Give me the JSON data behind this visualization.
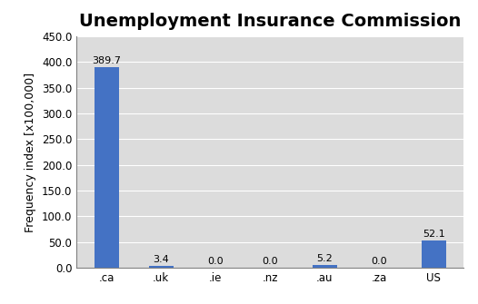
{
  "title": "Unemployment Insurance Commission",
  "categories": [
    ".ca",
    ".uk",
    ".ie",
    ".nz",
    ".au",
    ".za",
    "US"
  ],
  "values": [
    389.7,
    3.4,
    0.0,
    0.0,
    5.2,
    0.0,
    52.1
  ],
  "bar_color": "#4472C4",
  "ylabel": "Frequency index [x100,000]",
  "ylim": [
    0,
    450
  ],
  "yticks": [
    0.0,
    50.0,
    100.0,
    150.0,
    200.0,
    250.0,
    300.0,
    350.0,
    400.0,
    450.0
  ],
  "title_fontsize": 14,
  "label_fontsize": 9,
  "tick_fontsize": 8.5,
  "annotation_fontsize": 8,
  "plot_bg_color": "#DCDCDC",
  "fig_bg_color": "#FFFFFF",
  "grid_color": "#FFFFFF",
  "bar_width": 0.45
}
